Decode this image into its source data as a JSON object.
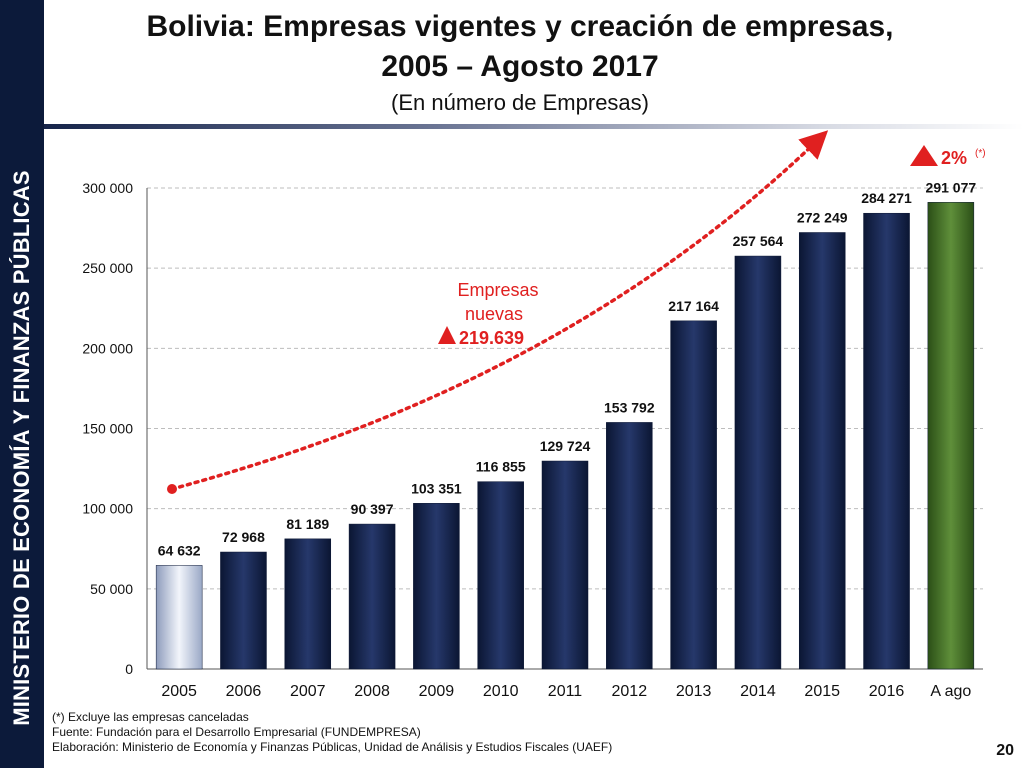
{
  "sidebar": {
    "text": "MINISTERIO DE ECONOMÍA Y FINANZAS PÚBLICAS"
  },
  "header": {
    "title_line1": "Bolivia: Empresas vigentes y creación de empresas,",
    "title_line2": "2005 – Agosto 2017",
    "subtitle": "(En número de Empresas)"
  },
  "chart_data": {
    "type": "bar",
    "categories": [
      "2005",
      "2006",
      "2007",
      "2008",
      "2009",
      "2010",
      "2011",
      "2012",
      "2013",
      "2014",
      "2015",
      "2016",
      "A ago 2017"
    ],
    "values": [
      64632,
      72968,
      81189,
      90397,
      103351,
      116855,
      129724,
      153792,
      217164,
      257564,
      272249,
      284271,
      291077
    ],
    "data_labels": [
      "64 632",
      "72 968",
      "81 189",
      "90 397",
      "103 351",
      "116 855",
      "129 724",
      "153 792",
      "217 164",
      "257 564",
      "272 249",
      "284 271",
      "291 077"
    ],
    "ylim": [
      0,
      300000
    ],
    "yticks": [
      0,
      50000,
      100000,
      150000,
      200000,
      250000,
      300000
    ],
    "ytick_labels": [
      "0",
      "50 000",
      "100 000",
      "150 000",
      "200 000",
      "250 000",
      "300 000"
    ],
    "grid": true,
    "colors": {
      "first": "#c9d3e6",
      "main": "#16244a",
      "last": "#3f6b25",
      "trend": "#e02020"
    },
    "annotations": {
      "new_companies_label_1": "Empresas",
      "new_companies_label_2": "nuevas",
      "new_companies_value": "219.639",
      "growth_value": "2%",
      "growth_note": "(*)"
    }
  },
  "footnotes": {
    "line1": "(*) Excluye las empresas canceladas",
    "line2": "Fuente: Fundación para el Desarrollo Empresarial (FUNDEMPRESA)",
    "line3": "Elaboración: Ministerio de Economía y Finanzas Públicas, Unidad de Análisis y Estudios Fiscales (UAEF)"
  },
  "page_number": "20"
}
